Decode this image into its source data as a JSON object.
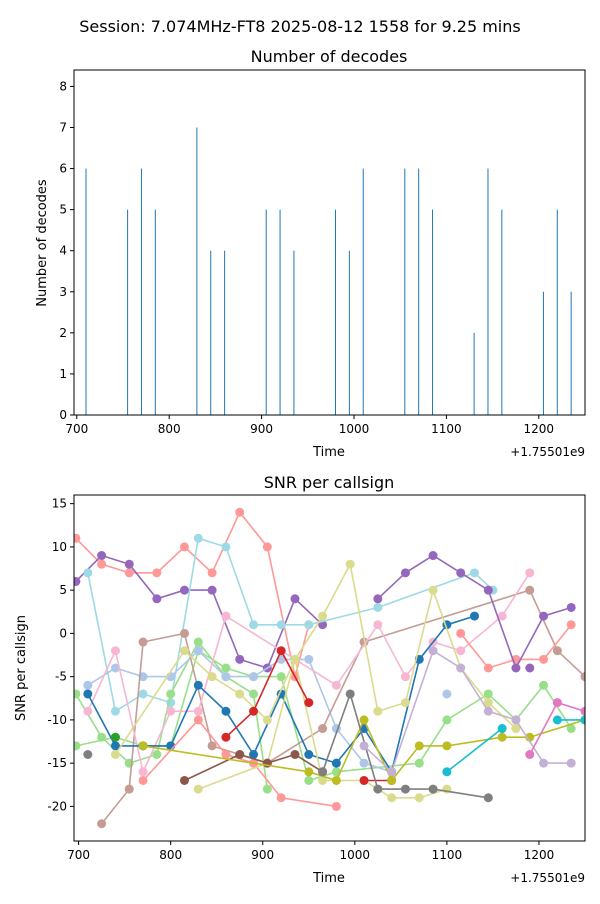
{
  "suptitle": "Session: 7.074MHz-FT8 2025-08-12 1558 for 9.25 mins",
  "chart_data": [
    {
      "type": "bar",
      "title": "Number of decodes",
      "xlabel": "Time",
      "ylabel": "Number of decodes",
      "x_offset_label": "+1.75501e9",
      "xlim": [
        697,
        1250
      ],
      "ylim": [
        0,
        8.4
      ],
      "xticks": [
        700,
        800,
        900,
        1000,
        1100,
        1200
      ],
      "yticks": [
        0,
        1,
        2,
        3,
        4,
        5,
        6,
        7,
        8
      ],
      "bar_color": "#1f77b4",
      "x": [
        710,
        755,
        770,
        785,
        830,
        845,
        860,
        905,
        920,
        935,
        980,
        995,
        1010,
        1055,
        1070,
        1085,
        1130,
        1145,
        1160,
        1205,
        1220,
        1235
      ],
      "values": [
        6,
        5,
        6,
        5,
        7,
        4,
        4,
        5,
        5,
        4,
        5,
        4,
        6,
        6,
        6,
        5,
        2,
        6,
        5,
        3,
        5,
        3
      ]
    },
    {
      "type": "line",
      "title": "SNR per callsign",
      "xlabel": "Time",
      "ylabel": "SNR per callsign",
      "x_offset_label": "+1.75501e9",
      "xlim": [
        695,
        1250
      ],
      "ylim": [
        -24,
        16
      ],
      "xticks": [
        700,
        800,
        900,
        1000,
        1100,
        1200
      ],
      "yticks": [
        -20,
        -15,
        -10,
        -5,
        0,
        5,
        10,
        15
      ],
      "series": [
        {
          "color": "#ff9896",
          "points": [
            [
              697,
              11
            ],
            [
              725,
              8
            ],
            [
              755,
              7
            ],
            [
              785,
              7
            ],
            [
              815,
              10
            ],
            [
              845,
              7
            ],
            [
              875,
              14
            ],
            [
              905,
              10
            ],
            [
              935,
              -5
            ],
            [
              950,
              1
            ]
          ]
        },
        {
          "color": "#9467bd",
          "points": [
            [
              697,
              6
            ],
            [
              725,
              9
            ],
            [
              755,
              8
            ],
            [
              785,
              4
            ],
            [
              815,
              5
            ],
            [
              845,
              5
            ],
            [
              875,
              -3
            ],
            [
              905,
              -4
            ],
            [
              935,
              4
            ],
            [
              965,
              1
            ]
          ]
        },
        {
          "color": "#9edae5",
          "points": [
            [
              710,
              7
            ],
            [
              740,
              -9
            ],
            [
              770,
              -7
            ],
            [
              800,
              -8
            ],
            [
              830,
              11
            ],
            [
              860,
              10
            ],
            [
              890,
              1
            ],
            [
              920,
              1
            ],
            [
              950,
              1
            ],
            [
              1025,
              3
            ],
            [
              1130,
              7
            ],
            [
              1150,
              5
            ]
          ]
        },
        {
          "color": "#98df8a",
          "points": [
            [
              697,
              -7
            ],
            [
              725,
              -12
            ],
            [
              755,
              -15
            ],
            [
              785,
              -14
            ],
            [
              800,
              -7
            ],
            [
              830,
              -1
            ],
            [
              860,
              -5
            ],
            [
              890,
              -7
            ],
            [
              905,
              -18
            ]
          ]
        },
        {
          "color": "#98df8a",
          "points": [
            [
              697,
              -13
            ],
            [
              740,
              -12
            ],
            [
              770,
              -13
            ],
            [
              800,
              -13
            ],
            [
              830,
              -2
            ],
            [
              860,
              -4
            ],
            [
              890,
              -5
            ],
            [
              920,
              -5
            ],
            [
              950,
              -17
            ],
            [
              980,
              -16
            ],
            [
              1070,
              -15
            ],
            [
              1100,
              -10
            ],
            [
              1145,
              -7
            ],
            [
              1175,
              -10
            ],
            [
              1205,
              -6
            ],
            [
              1235,
              -11
            ]
          ]
        },
        {
          "color": "#aec7e8",
          "points": [
            [
              710,
              -6
            ],
            [
              740,
              -4
            ],
            [
              770,
              -5
            ],
            [
              800,
              -5
            ],
            [
              830,
              -2
            ],
            [
              860,
              -5
            ],
            [
              890,
              -5
            ],
            [
              920,
              -3
            ],
            [
              950,
              -3
            ],
            [
              980,
              -11
            ],
            [
              1010,
              -15
            ],
            [
              1040,
              -16
            ]
          ]
        },
        {
          "color": "#c49c94",
          "points": [
            [
              725,
              -22
            ],
            [
              755,
              -18
            ],
            [
              770,
              -1
            ],
            [
              815,
              0
            ],
            [
              845,
              -13
            ],
            [
              875,
              -14
            ],
            [
              905,
              -15
            ],
            [
              965,
              -11
            ],
            [
              1010,
              -1
            ],
            [
              1190,
              5
            ],
            [
              1220,
              -2
            ],
            [
              1250,
              -5
            ]
          ]
        },
        {
          "color": "#f7b6d2",
          "points": [
            [
              710,
              -9
            ],
            [
              740,
              -2
            ],
            [
              770,
              -16
            ],
            [
              800,
              -9
            ],
            [
              830,
              -9
            ],
            [
              860,
              2
            ],
            [
              980,
              -6
            ],
            [
              1025,
              1
            ],
            [
              1055,
              -5
            ],
            [
              1085,
              -1
            ],
            [
              1115,
              -2
            ],
            [
              1160,
              2
            ],
            [
              1190,
              7
            ]
          ]
        },
        {
          "color": "#1f77b4",
          "points": [
            [
              710,
              -7
            ],
            [
              740,
              -13
            ],
            [
              770,
              -13
            ],
            [
              800,
              -13
            ],
            [
              830,
              -6
            ],
            [
              860,
              -9
            ],
            [
              890,
              -14
            ],
            [
              920,
              -7
            ],
            [
              950,
              -14
            ],
            [
              980,
              -15
            ],
            [
              1010,
              -11
            ],
            [
              1040,
              -16
            ],
            [
              1070,
              -3
            ],
            [
              1100,
              1
            ],
            [
              1130,
              2
            ]
          ]
        },
        {
          "color": "#2ca02c",
          "points": [
            [
              740,
              -12
            ]
          ]
        },
        {
          "color": "#ff9896",
          "points": [
            [
              770,
              -17
            ],
            [
              830,
              -10
            ],
            [
              860,
              -14
            ],
            [
              890,
              -15
            ],
            [
              920,
              -19
            ],
            [
              980,
              -20
            ]
          ]
        },
        {
          "color": "#dbdb8d",
          "points": [
            [
              830,
              -18
            ],
            [
              905,
              -15
            ],
            [
              935,
              -3
            ],
            [
              965,
              2
            ],
            [
              995,
              8
            ],
            [
              1025,
              -9
            ],
            [
              1055,
              -8
            ],
            [
              1085,
              5
            ],
            [
              1115,
              -4
            ],
            [
              1145,
              -8
            ],
            [
              1175,
              -11
            ]
          ]
        },
        {
          "color": "#dbdb8d",
          "points": [
            [
              740,
              -14
            ],
            [
              815,
              -2
            ],
            [
              845,
              -5
            ],
            [
              875,
              -7
            ],
            [
              905,
              -10
            ],
            [
              935,
              -3
            ],
            [
              965,
              -17
            ],
            [
              1010,
              -17
            ],
            [
              1040,
              -19
            ],
            [
              1070,
              -19
            ],
            [
              1100,
              -18
            ]
          ]
        },
        {
          "color": "#8c564b",
          "points": [
            [
              815,
              -17
            ],
            [
              875,
              -14
            ],
            [
              905,
              -15
            ],
            [
              935,
              -14
            ],
            [
              965,
              -16
            ]
          ]
        },
        {
          "color": "#d62728",
          "points": [
            [
              860,
              -12
            ],
            [
              890,
              -9
            ],
            [
              920,
              -2
            ],
            [
              950,
              -8
            ]
          ]
        },
        {
          "color": "#d62728",
          "points": [
            [
              1010,
              -17
            ],
            [
              1040,
              -17
            ]
          ]
        },
        {
          "color": "#bcbd22",
          "points": [
            [
              770,
              -13
            ],
            [
              950,
              -16
            ],
            [
              980,
              -17
            ],
            [
              1010,
              -10
            ],
            [
              1040,
              -17
            ],
            [
              1070,
              -13
            ],
            [
              1100,
              -13
            ],
            [
              1160,
              -12
            ],
            [
              1190,
              -12
            ],
            [
              1250,
              -10
            ]
          ]
        },
        {
          "color": "#7f7f7f",
          "points": [
            [
              710,
              -14
            ]
          ]
        },
        {
          "color": "#7f7f7f",
          "points": [
            [
              965,
              -16
            ],
            [
              995,
              -7
            ],
            [
              1025,
              -18
            ],
            [
              1055,
              -18
            ],
            [
              1085,
              -18
            ],
            [
              1145,
              -19
            ]
          ]
        },
        {
          "color": "#c5b0d5",
          "points": [
            [
              1010,
              -13
            ],
            [
              1040,
              -16
            ],
            [
              1085,
              -2
            ],
            [
              1115,
              -4
            ],
            [
              1145,
              -9
            ],
            [
              1175,
              -10
            ],
            [
              1205,
              -15
            ],
            [
              1235,
              -15
            ]
          ]
        },
        {
          "color": "#17becf",
          "points": [
            [
              1100,
              -16
            ],
            [
              1160,
              -11
            ]
          ]
        },
        {
          "color": "#e377c2",
          "points": [
            [
              1190,
              -14
            ],
            [
              1220,
              -8
            ],
            [
              1250,
              -9
            ]
          ]
        },
        {
          "color": "#ff9896",
          "points": [
            [
              1115,
              0
            ],
            [
              1145,
              -4
            ],
            [
              1175,
              -3
            ],
            [
              1205,
              -3
            ],
            [
              1235,
              1
            ]
          ]
        },
        {
          "color": "#17becf",
          "points": [
            [
              1220,
              -10
            ],
            [
              1250,
              -10
            ]
          ]
        },
        {
          "color": "#9467bd",
          "points": [
            [
              1025,
              4
            ],
            [
              1055,
              7
            ],
            [
              1085,
              9
            ],
            [
              1115,
              7
            ],
            [
              1145,
              5
            ],
            [
              1175,
              -4
            ],
            [
              1205,
              2
            ],
            [
              1235,
              3
            ]
          ]
        },
        {
          "color": "#aec7e8",
          "points": [
            [
              1100,
              -7
            ]
          ]
        },
        {
          "color": "#9467bd",
          "points": [
            [
              1190,
              -4
            ]
          ]
        }
      ]
    }
  ]
}
